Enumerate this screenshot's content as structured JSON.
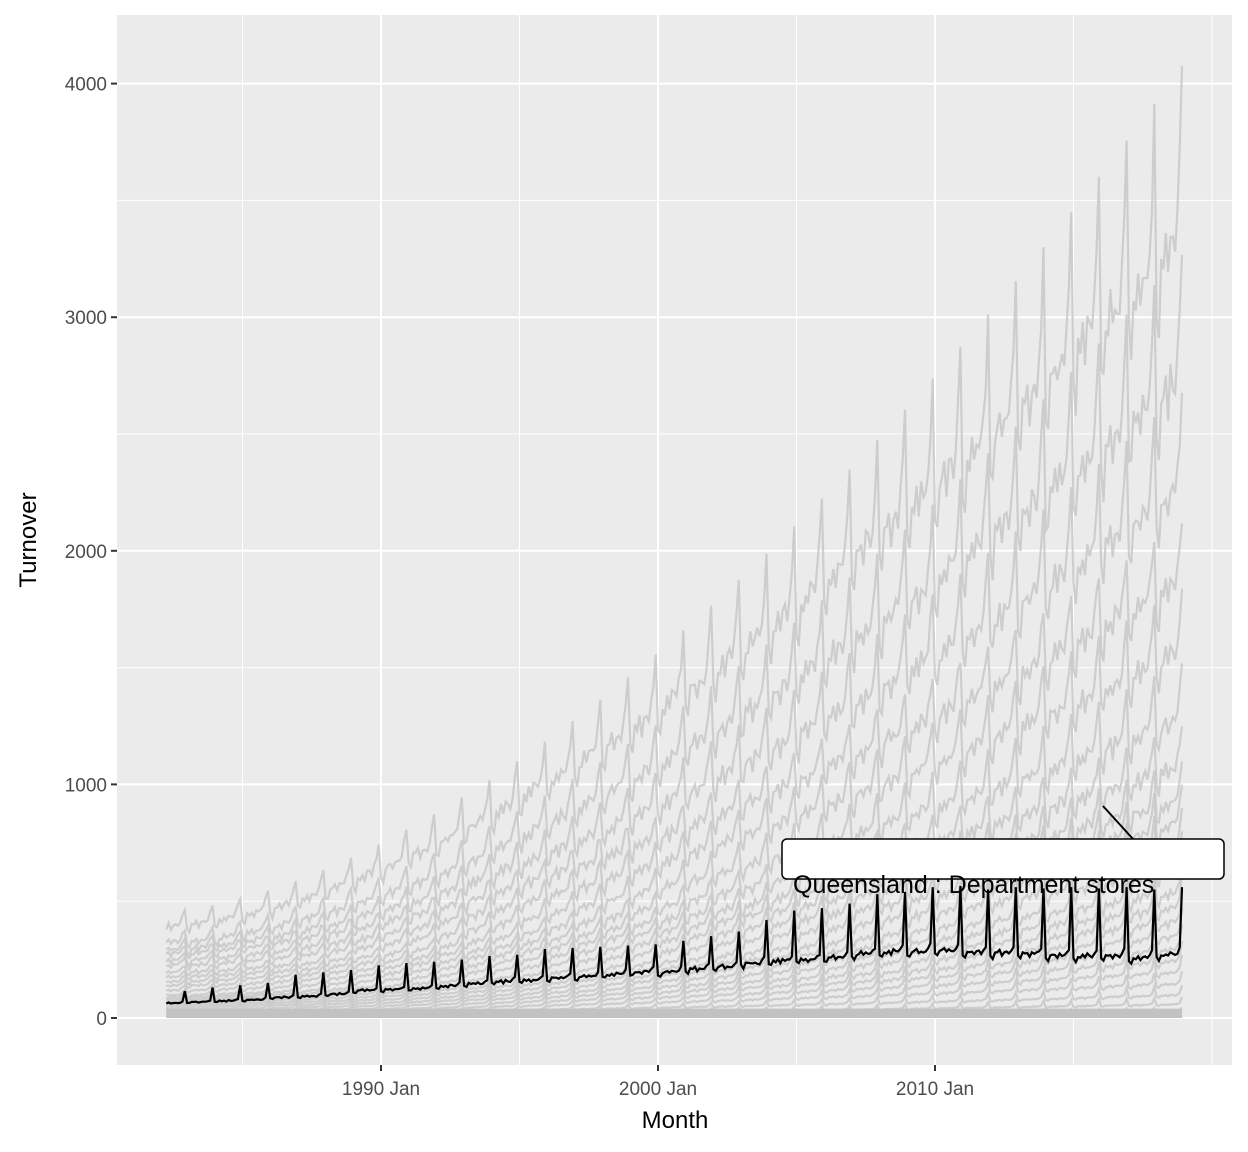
{
  "chart_data": {
    "type": "line",
    "xlabel": "Month",
    "ylabel": "Turnover",
    "xlim": [
      "1980 Jun",
      "2020 Sep"
    ],
    "ylim": [
      -200,
      4290
    ],
    "x_ticks": [
      {
        "label": "1990 Jan",
        "year": 1990
      },
      {
        "label": "2000 Jan",
        "year": 2000
      },
      {
        "label": "2010 Jan",
        "year": 2010
      }
    ],
    "y_ticks": [
      {
        "label": "0",
        "value": 0
      },
      {
        "label": "1000",
        "value": 1000
      },
      {
        "label": "2000",
        "value": 2000
      },
      {
        "label": "3000",
        "value": 3000
      },
      {
        "label": "4000",
        "value": 4000
      }
    ],
    "x_range": [
      "1982 Apr",
      "2018 Dec"
    ],
    "grid": true,
    "colors": {
      "panel": "#ebebeb",
      "grid": "#ffffff",
      "background_series": "#c8c8c8",
      "highlight": "#000000"
    },
    "highlight": {
      "name": "Queensland : Department stores",
      "years": [
        1982,
        1983,
        1984,
        1985,
        1986,
        1987,
        1988,
        1989,
        1990,
        1991,
        1992,
        1993,
        1994,
        1995,
        1996,
        1997,
        1998,
        1999,
        2000,
        2001,
        2002,
        2003,
        2004,
        2005,
        2006,
        2007,
        2008,
        2009,
        2010,
        2011,
        2012,
        2013,
        2014,
        2015,
        2016,
        2017,
        2018
      ],
      "base_level": [
        65,
        70,
        75,
        80,
        90,
        95,
        105,
        120,
        125,
        130,
        140,
        150,
        160,
        165,
        175,
        180,
        190,
        200,
        200,
        215,
        225,
        240,
        250,
        255,
        265,
        280,
        290,
        290,
        295,
        285,
        285,
        280,
        275,
        270,
        270,
        265,
        275
      ],
      "december_peak": [
        115,
        130,
        140,
        150,
        185,
        195,
        205,
        225,
        235,
        240,
        250,
        265,
        270,
        295,
        300,
        305,
        310,
        315,
        330,
        350,
        370,
        420,
        460,
        470,
        490,
        530,
        540,
        560,
        565,
        550,
        560,
        555,
        560,
        555,
        560,
        550,
        560
      ]
    },
    "background_series": [
      {
        "start": 400,
        "end": 3400,
        "december_peak_end": 4080
      },
      {
        "start": 330,
        "end": 2800,
        "december_peak_end": 3270
      },
      {
        "start": 300,
        "end": 2300,
        "december_peak_end": 2680
      },
      {
        "start": 280,
        "end": 1900,
        "december_peak_end": 2120
      },
      {
        "start": 250,
        "end": 1600,
        "december_peak_end": 1840
      },
      {
        "start": 230,
        "end": 1300,
        "december_peak_end": 1520
      },
      {
        "start": 200,
        "end": 1100,
        "december_peak_end": 1250
      },
      {
        "start": 180,
        "end": 950,
        "december_peak_end": 1100
      },
      {
        "start": 160,
        "end": 850,
        "december_peak_end": 1000
      },
      {
        "start": 140,
        "end": 750,
        "december_peak_end": 900
      },
      {
        "start": 120,
        "end": 650,
        "december_peak_end": 800
      },
      {
        "start": 100,
        "end": 550,
        "december_peak_end": 700
      },
      {
        "start": 90,
        "end": 480,
        "december_peak_end": 620
      },
      {
        "start": 80,
        "end": 420,
        "december_peak_end": 540
      },
      {
        "start": 70,
        "end": 360,
        "december_peak_end": 470
      },
      {
        "start": 60,
        "end": 300,
        "december_peak_end": 400
      },
      {
        "start": 50,
        "end": 250,
        "december_peak_end": 330
      },
      {
        "start": 40,
        "end": 200,
        "december_peak_end": 270
      },
      {
        "start": 30,
        "end": 150,
        "december_peak_end": 200
      },
      {
        "start": 20,
        "end": 100,
        "december_peak_end": 140
      },
      {
        "start": 10,
        "end": 60,
        "december_peak_end": 90
      },
      {
        "start": 5,
        "end": 30,
        "december_peak_end": 45
      }
    ]
  }
}
